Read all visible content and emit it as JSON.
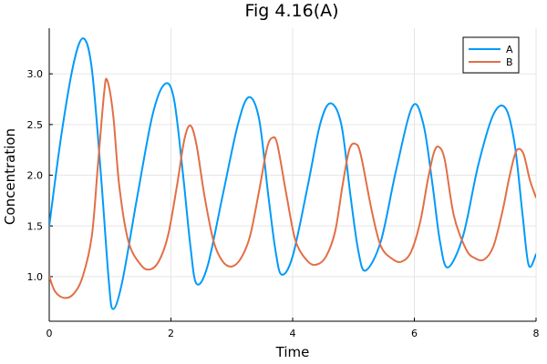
{
  "chart_data": {
    "type": "line",
    "title": "Fig 4.16(A)",
    "xlabel": "Time",
    "ylabel": "Concentration",
    "xlim": [
      0,
      8
    ],
    "ylim": [
      0.56,
      3.45
    ],
    "xticks": [
      0,
      2,
      4,
      6,
      8
    ],
    "xtick_labels": [
      "0",
      "2",
      "4",
      "6",
      "8"
    ],
    "yticks": [
      1.0,
      1.5,
      2.0,
      2.5,
      3.0
    ],
    "ytick_labels": [
      "1.0",
      "1.5",
      "2.0",
      "2.5",
      "3.0"
    ],
    "grid": true,
    "legend_position": "top-right",
    "series": [
      {
        "name": "A",
        "color": "#009AFA",
        "x": [
          0,
          0.2,
          0.4,
          0.56,
          0.7,
          0.85,
          0.98,
          1.05,
          1.2,
          1.45,
          1.7,
          1.9,
          2.05,
          2.2,
          2.32,
          2.42,
          2.6,
          2.85,
          3.1,
          3.28,
          3.45,
          3.6,
          3.72,
          3.82,
          4.0,
          4.25,
          4.45,
          4.62,
          4.8,
          4.95,
          5.08,
          5.2,
          5.45,
          5.7,
          5.97,
          6.15,
          6.3,
          6.42,
          6.55,
          6.8,
          7.05,
          7.3,
          7.5,
          7.65,
          7.78,
          7.88,
          8.0
        ],
        "y": [
          1.5,
          2.4,
          3.1,
          3.35,
          3.05,
          2.0,
          0.95,
          0.68,
          0.95,
          1.8,
          2.6,
          2.9,
          2.75,
          2.0,
          1.3,
          0.93,
          1.1,
          1.8,
          2.5,
          2.77,
          2.55,
          1.8,
          1.25,
          1.02,
          1.2,
          1.9,
          2.5,
          2.71,
          2.5,
          1.8,
          1.25,
          1.06,
          1.35,
          2.05,
          2.68,
          2.5,
          1.9,
          1.35,
          1.09,
          1.4,
          2.1,
          2.6,
          2.66,
          2.3,
          1.6,
          1.11,
          1.22
        ]
      },
      {
        "name": "B",
        "color": "#E26F46",
        "x": [
          0,
          0.1,
          0.25,
          0.4,
          0.55,
          0.7,
          0.8,
          0.9,
          0.95,
          1.05,
          1.15,
          1.3,
          1.5,
          1.65,
          1.8,
          1.95,
          2.1,
          2.22,
          2.32,
          2.42,
          2.55,
          2.7,
          2.85,
          3.0,
          3.15,
          3.3,
          3.45,
          3.58,
          3.67,
          3.75,
          3.9,
          4.05,
          4.25,
          4.4,
          4.55,
          4.7,
          4.82,
          4.93,
          5.03,
          5.12,
          5.3,
          5.45,
          5.65,
          5.8,
          5.95,
          6.1,
          6.22,
          6.32,
          6.4,
          6.5,
          6.65,
          6.85,
          7.0,
          7.15,
          7.3,
          7.45,
          7.55,
          7.65,
          7.72,
          7.8,
          7.9,
          8.0
        ],
        "y": [
          1.0,
          0.85,
          0.79,
          0.83,
          1.0,
          1.4,
          2.1,
          2.8,
          2.94,
          2.6,
          1.9,
          1.35,
          1.12,
          1.07,
          1.15,
          1.4,
          1.9,
          2.35,
          2.49,
          2.3,
          1.8,
          1.35,
          1.15,
          1.1,
          1.18,
          1.4,
          1.85,
          2.27,
          2.37,
          2.3,
          1.8,
          1.35,
          1.15,
          1.12,
          1.2,
          1.45,
          1.9,
          2.25,
          2.31,
          2.2,
          1.65,
          1.3,
          1.17,
          1.15,
          1.25,
          1.55,
          1.95,
          2.22,
          2.28,
          2.15,
          1.6,
          1.27,
          1.18,
          1.17,
          1.3,
          1.65,
          1.95,
          2.2,
          2.26,
          2.2,
          1.95,
          1.78
        ]
      }
    ]
  }
}
